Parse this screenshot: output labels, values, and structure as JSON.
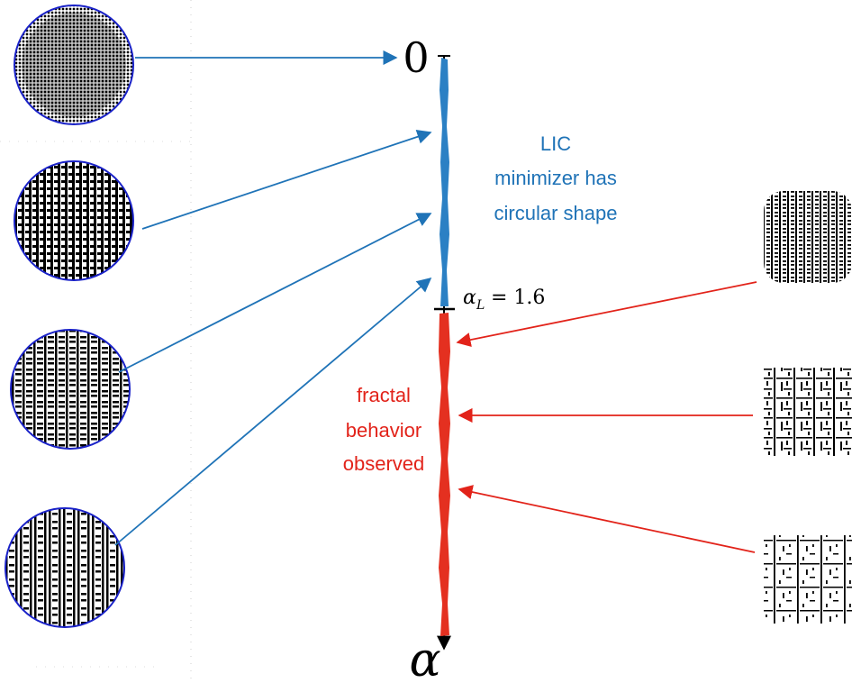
{
  "axis": {
    "top_label": "0",
    "bottom_label": "α",
    "threshold_symbol": "α",
    "threshold_subscript": "L",
    "threshold_value": "= 1.6"
  },
  "regions": {
    "upper": {
      "lines": [
        "LIC",
        "minimizer has",
        "circular shape"
      ],
      "color": "#1f73b7"
    },
    "lower": {
      "lines": [
        "fractal",
        "behavior",
        "observed"
      ],
      "color": "#e2231a"
    }
  },
  "left_thumbnails": [
    {
      "icon": "dense-dot-disk-icon"
    },
    {
      "icon": "short-stripe-disk-icon"
    },
    {
      "icon": "medium-stripe-disk-icon"
    },
    {
      "icon": "long-stripe-disk-icon"
    }
  ],
  "right_thumbnails": [
    {
      "icon": "rounded-square-stripe-pattern-icon"
    },
    {
      "icon": "sparse-square-fractal-pattern-icon"
    },
    {
      "icon": "sparser-square-fractal-pattern-icon"
    }
  ]
}
